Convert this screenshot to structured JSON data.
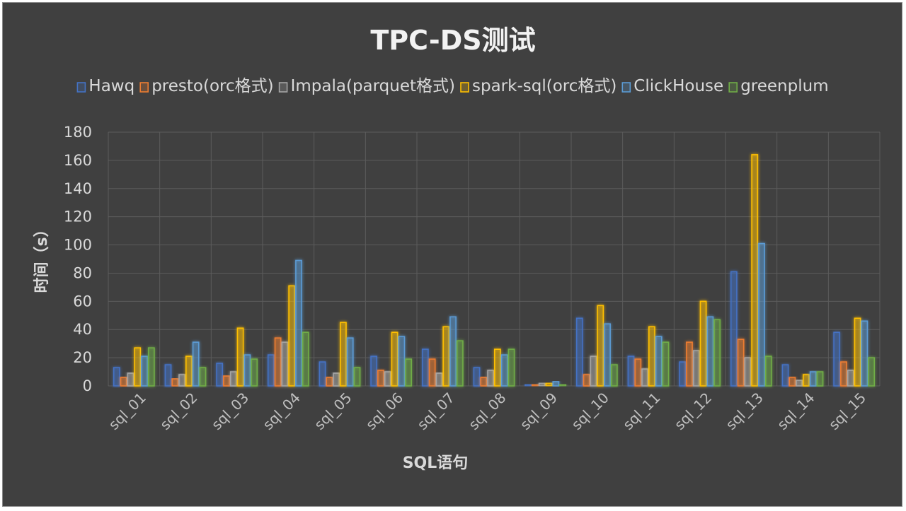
{
  "chart_data": {
    "type": "bar",
    "title": "TPC-DS测试",
    "xlabel": "SQL语句",
    "ylabel": "时间（s）",
    "ylim": [
      0,
      180
    ],
    "yticks": [
      0,
      20,
      40,
      60,
      80,
      100,
      120,
      140,
      160,
      180
    ],
    "grid": true,
    "legend_position": "top",
    "categories": [
      "sql_01",
      "sql_02",
      "sql_03",
      "sql_04",
      "sql_05",
      "sql_06",
      "sql_07",
      "sql_08",
      "sql_09",
      "sql_10",
      "sql_11",
      "sql_12",
      "sql_13",
      "sql_14",
      "sql_15"
    ],
    "series": [
      {
        "name": "Hawq",
        "color": "#4472c4",
        "values": [
          13,
          15,
          16,
          22,
          17,
          21,
          26,
          13,
          1,
          48,
          21,
          17,
          81,
          15,
          38
        ]
      },
      {
        "name": "presto(orc格式)",
        "color": "#ed7d31",
        "values": [
          6,
          5,
          7,
          34,
          6,
          11,
          19,
          6,
          1,
          8,
          19,
          31,
          33,
          6,
          17
        ]
      },
      {
        "name": "Impala(parquet格式)",
        "color": "#a5a5a5",
        "values": [
          9,
          8,
          10,
          31,
          9,
          10,
          9,
          11,
          2,
          21,
          12,
          25,
          20,
          4,
          11
        ]
      },
      {
        "name": "spark-sql(orc格式)",
        "color": "#ffc000",
        "values": [
          27,
          21,
          41,
          71,
          45,
          38,
          42,
          26,
          2,
          57,
          42,
          60,
          164,
          8,
          48
        ]
      },
      {
        "name": "ClickHouse",
        "color": "#5b9bd5",
        "values": [
          21,
          31,
          22,
          89,
          34,
          35,
          49,
          22,
          3,
          44,
          35,
          49,
          101,
          10,
          46
        ]
      },
      {
        "name": "greenplum",
        "color": "#70ad47",
        "values": [
          27,
          13,
          19,
          38,
          13,
          19,
          32,
          26,
          1,
          15,
          31,
          47,
          21,
          10,
          20
        ]
      }
    ]
  }
}
